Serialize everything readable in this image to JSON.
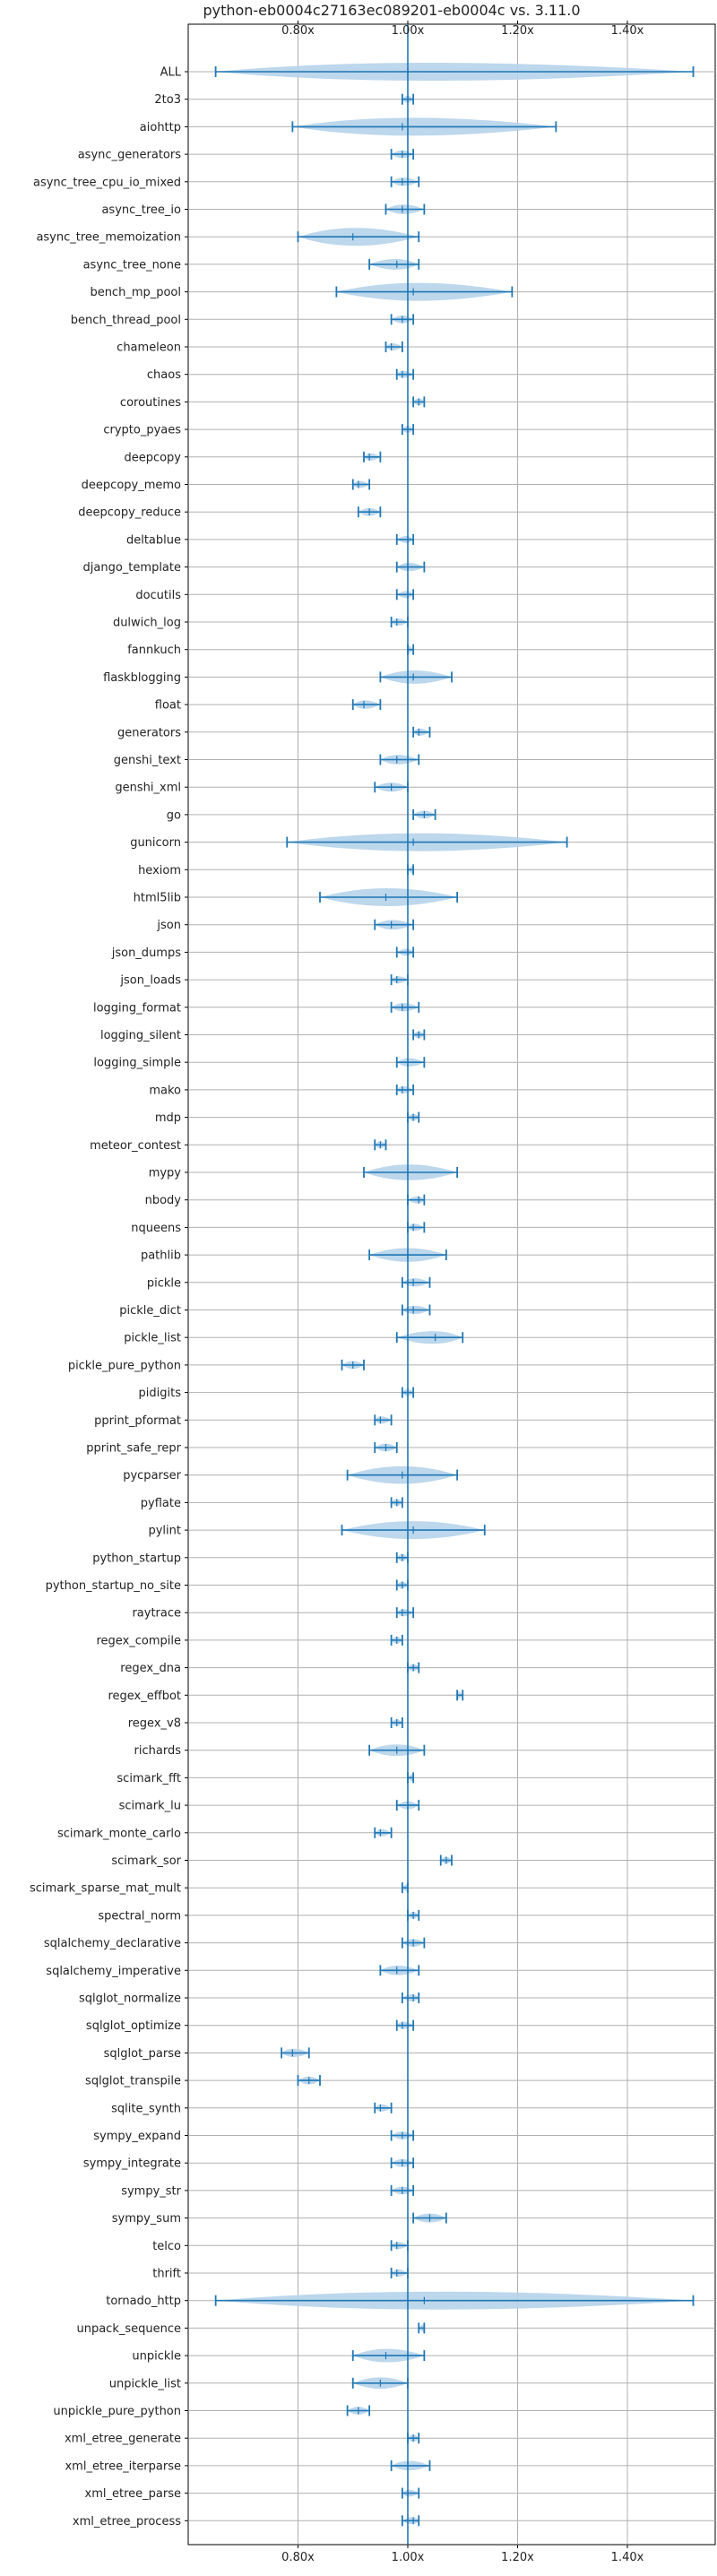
{
  "chart_data": {
    "type": "violin",
    "orientation": "horizontal",
    "title": "python-eb0004c27163ec089201-eb0004c vs. 3.11.0",
    "xlim": [
      0.6,
      1.56
    ],
    "xticks": [
      0.8,
      1.0,
      1.2,
      1.4
    ],
    "xtick_labels": [
      "0.80x",
      "1.00x",
      "1.20x",
      "1.40x"
    ],
    "reference_line": 1.0,
    "grid": true,
    "colors": {
      "body": "#b6d3ea",
      "line": "#1f77b4",
      "grid": "#b0b0b0"
    },
    "benchmarks": [
      {
        "name": "ALL",
        "min": 0.65,
        "median": 1.0,
        "max": 1.52
      },
      {
        "name": "2to3",
        "min": 0.99,
        "median": 1.0,
        "max": 1.01
      },
      {
        "name": "aiohttp",
        "min": 0.79,
        "median": 0.99,
        "max": 1.27
      },
      {
        "name": "async_generators",
        "min": 0.97,
        "median": 0.99,
        "max": 1.01
      },
      {
        "name": "async_tree_cpu_io_mixed",
        "min": 0.97,
        "median": 0.99,
        "max": 1.02
      },
      {
        "name": "async_tree_io",
        "min": 0.96,
        "median": 0.99,
        "max": 1.03
      },
      {
        "name": "async_tree_memoization",
        "min": 0.8,
        "median": 0.9,
        "max": 1.02
      },
      {
        "name": "async_tree_none",
        "min": 0.93,
        "median": 0.98,
        "max": 1.02
      },
      {
        "name": "bench_mp_pool",
        "min": 0.87,
        "median": 1.01,
        "max": 1.19
      },
      {
        "name": "bench_thread_pool",
        "min": 0.97,
        "median": 0.99,
        "max": 1.01
      },
      {
        "name": "chameleon",
        "min": 0.96,
        "median": 0.97,
        "max": 0.99
      },
      {
        "name": "chaos",
        "min": 0.98,
        "median": 0.99,
        "max": 1.01
      },
      {
        "name": "coroutines",
        "min": 1.01,
        "median": 1.02,
        "max": 1.03
      },
      {
        "name": "crypto_pyaes",
        "min": 0.99,
        "median": 1.0,
        "max": 1.01
      },
      {
        "name": "deepcopy",
        "min": 0.92,
        "median": 0.93,
        "max": 0.95
      },
      {
        "name": "deepcopy_memo",
        "min": 0.9,
        "median": 0.91,
        "max": 0.93
      },
      {
        "name": "deepcopy_reduce",
        "min": 0.91,
        "median": 0.93,
        "max": 0.95
      },
      {
        "name": "deltablue",
        "min": 0.98,
        "median": 1.0,
        "max": 1.01
      },
      {
        "name": "django_template",
        "min": 0.98,
        "median": 1.0,
        "max": 1.03
      },
      {
        "name": "docutils",
        "min": 0.98,
        "median": 1.0,
        "max": 1.01
      },
      {
        "name": "dulwich_log",
        "min": 0.97,
        "median": 0.98,
        "max": 1.0
      },
      {
        "name": "fannkuch",
        "min": 1.0,
        "median": 1.0,
        "max": 1.01
      },
      {
        "name": "flaskblogging",
        "min": 0.95,
        "median": 1.01,
        "max": 1.08
      },
      {
        "name": "float",
        "min": 0.9,
        "median": 0.92,
        "max": 0.95
      },
      {
        "name": "generators",
        "min": 1.01,
        "median": 1.02,
        "max": 1.04
      },
      {
        "name": "genshi_text",
        "min": 0.95,
        "median": 0.98,
        "max": 1.02
      },
      {
        "name": "genshi_xml",
        "min": 0.94,
        "median": 0.97,
        "max": 1.0
      },
      {
        "name": "go",
        "min": 1.01,
        "median": 1.03,
        "max": 1.05
      },
      {
        "name": "gunicorn",
        "min": 0.78,
        "median": 1.01,
        "max": 1.29
      },
      {
        "name": "hexiom",
        "min": 1.0,
        "median": 1.01,
        "max": 1.01
      },
      {
        "name": "html5lib",
        "min": 0.84,
        "median": 0.96,
        "max": 1.09
      },
      {
        "name": "json",
        "min": 0.94,
        "median": 0.97,
        "max": 1.01
      },
      {
        "name": "json_dumps",
        "min": 0.98,
        "median": 1.0,
        "max": 1.01
      },
      {
        "name": "json_loads",
        "min": 0.97,
        "median": 0.98,
        "max": 1.0
      },
      {
        "name": "logging_format",
        "min": 0.97,
        "median": 0.99,
        "max": 1.02
      },
      {
        "name": "logging_silent",
        "min": 1.01,
        "median": 1.02,
        "max": 1.03
      },
      {
        "name": "logging_simple",
        "min": 0.98,
        "median": 1.0,
        "max": 1.03
      },
      {
        "name": "mako",
        "min": 0.98,
        "median": 0.99,
        "max": 1.01
      },
      {
        "name": "mdp",
        "min": 1.0,
        "median": 1.01,
        "max": 1.02
      },
      {
        "name": "meteor_contest",
        "min": 0.94,
        "median": 0.95,
        "max": 0.96
      },
      {
        "name": "mypy",
        "min": 0.92,
        "median": 1.0,
        "max": 1.09
      },
      {
        "name": "nbody",
        "min": 1.0,
        "median": 1.02,
        "max": 1.03
      },
      {
        "name": "nqueens",
        "min": 1.0,
        "median": 1.01,
        "max": 1.03
      },
      {
        "name": "pathlib",
        "min": 0.93,
        "median": 1.0,
        "max": 1.07
      },
      {
        "name": "pickle",
        "min": 0.99,
        "median": 1.01,
        "max": 1.04
      },
      {
        "name": "pickle_dict",
        "min": 0.99,
        "median": 1.01,
        "max": 1.04
      },
      {
        "name": "pickle_list",
        "min": 0.98,
        "median": 1.05,
        "max": 1.1
      },
      {
        "name": "pickle_pure_python",
        "min": 0.88,
        "median": 0.9,
        "max": 0.92
      },
      {
        "name": "pidigits",
        "min": 0.99,
        "median": 1.0,
        "max": 1.01
      },
      {
        "name": "pprint_pformat",
        "min": 0.94,
        "median": 0.95,
        "max": 0.97
      },
      {
        "name": "pprint_safe_repr",
        "min": 0.94,
        "median": 0.96,
        "max": 0.98
      },
      {
        "name": "pycparser",
        "min": 0.89,
        "median": 0.99,
        "max": 1.09
      },
      {
        "name": "pyflate",
        "min": 0.97,
        "median": 0.98,
        "max": 0.99
      },
      {
        "name": "pylint",
        "min": 0.88,
        "median": 1.01,
        "max": 1.14
      },
      {
        "name": "python_startup",
        "min": 0.98,
        "median": 0.99,
        "max": 1.0
      },
      {
        "name": "python_startup_no_site",
        "min": 0.98,
        "median": 0.99,
        "max": 1.0
      },
      {
        "name": "raytrace",
        "min": 0.98,
        "median": 0.99,
        "max": 1.01
      },
      {
        "name": "regex_compile",
        "min": 0.97,
        "median": 0.98,
        "max": 0.99
      },
      {
        "name": "regex_dna",
        "min": 1.0,
        "median": 1.01,
        "max": 1.02
      },
      {
        "name": "regex_effbot",
        "min": 1.09,
        "median": 1.09,
        "max": 1.1
      },
      {
        "name": "regex_v8",
        "min": 0.97,
        "median": 0.98,
        "max": 0.99
      },
      {
        "name": "richards",
        "min": 0.93,
        "median": 0.98,
        "max": 1.03
      },
      {
        "name": "scimark_fft",
        "min": 1.0,
        "median": 1.01,
        "max": 1.01
      },
      {
        "name": "scimark_lu",
        "min": 0.98,
        "median": 1.0,
        "max": 1.02
      },
      {
        "name": "scimark_monte_carlo",
        "min": 0.94,
        "median": 0.95,
        "max": 0.97
      },
      {
        "name": "scimark_sor",
        "min": 1.06,
        "median": 1.07,
        "max": 1.08
      },
      {
        "name": "scimark_sparse_mat_mult",
        "min": 0.99,
        "median": 1.0,
        "max": 1.0
      },
      {
        "name": "spectral_norm",
        "min": 1.0,
        "median": 1.01,
        "max": 1.02
      },
      {
        "name": "sqlalchemy_declarative",
        "min": 0.99,
        "median": 1.01,
        "max": 1.03
      },
      {
        "name": "sqlalchemy_imperative",
        "min": 0.95,
        "median": 0.98,
        "max": 1.02
      },
      {
        "name": "sqlglot_normalize",
        "min": 0.99,
        "median": 1.01,
        "max": 1.02
      },
      {
        "name": "sqlglot_optimize",
        "min": 0.98,
        "median": 0.99,
        "max": 1.01
      },
      {
        "name": "sqlglot_parse",
        "min": 0.77,
        "median": 0.79,
        "max": 0.82
      },
      {
        "name": "sqlglot_transpile",
        "min": 0.8,
        "median": 0.82,
        "max": 0.84
      },
      {
        "name": "sqlite_synth",
        "min": 0.94,
        "median": 0.95,
        "max": 0.97
      },
      {
        "name": "sympy_expand",
        "min": 0.97,
        "median": 0.99,
        "max": 1.01
      },
      {
        "name": "sympy_integrate",
        "min": 0.97,
        "median": 0.99,
        "max": 1.01
      },
      {
        "name": "sympy_str",
        "min": 0.97,
        "median": 0.99,
        "max": 1.01
      },
      {
        "name": "sympy_sum",
        "min": 1.01,
        "median": 1.04,
        "max": 1.07
      },
      {
        "name": "telco",
        "min": 0.97,
        "median": 0.98,
        "max": 1.0
      },
      {
        "name": "thrift",
        "min": 0.97,
        "median": 0.98,
        "max": 1.0
      },
      {
        "name": "tornado_http",
        "min": 0.65,
        "median": 1.03,
        "max": 1.52
      },
      {
        "name": "unpack_sequence",
        "min": 1.02,
        "median": 1.03,
        "max": 1.03
      },
      {
        "name": "unpickle",
        "min": 0.9,
        "median": 0.96,
        "max": 1.03
      },
      {
        "name": "unpickle_list",
        "min": 0.9,
        "median": 0.95,
        "max": 1.0
      },
      {
        "name": "unpickle_pure_python",
        "min": 0.89,
        "median": 0.91,
        "max": 0.93
      },
      {
        "name": "xml_etree_generate",
        "min": 1.0,
        "median": 1.01,
        "max": 1.02
      },
      {
        "name": "xml_etree_iterparse",
        "min": 0.97,
        "median": 1.0,
        "max": 1.04
      },
      {
        "name": "xml_etree_parse",
        "min": 0.99,
        "median": 1.0,
        "max": 1.02
      },
      {
        "name": "xml_etree_process",
        "min": 0.99,
        "median": 1.01,
        "max": 1.02
      }
    ]
  }
}
